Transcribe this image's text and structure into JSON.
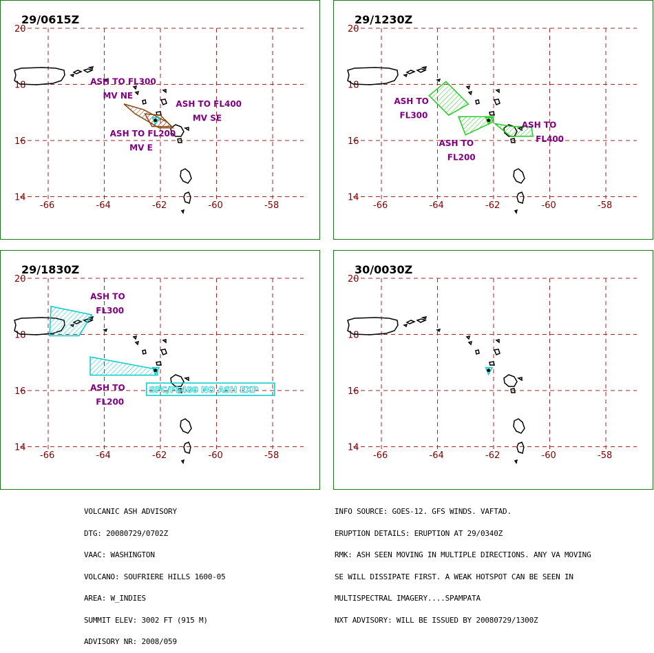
{
  "panels": [
    {
      "time": "29/0615Z",
      "labels": [
        {
          "text": "ASH TO FL300",
          "lon": -64.5,
          "lat": 18.0
        },
        {
          "text": "MV NE",
          "lon": -64.05,
          "lat": 17.5
        },
        {
          "text": "ASH TO FL400",
          "lon": -61.45,
          "lat": 17.2
        },
        {
          "text": "MV SE",
          "lon": -60.85,
          "lat": 16.7
        },
        {
          "text": "ASH TO FL200",
          "lon": -63.8,
          "lat": 16.15
        },
        {
          "text": "MV E",
          "lon": -63.1,
          "lat": 15.65
        }
      ],
      "ash_areas": [
        {
          "color": "#8b4513",
          "points": [
            [
              -63.3,
              17.3
            ],
            [
              -62.6,
              17.1
            ],
            [
              -61.75,
              16.65
            ],
            [
              -61.55,
              16.45
            ],
            [
              -62.05,
              16.45
            ],
            [
              -62.9,
              16.95
            ]
          ]
        },
        {
          "color": "#8b4513",
          "points": [
            [
              -62.55,
              16.95
            ],
            [
              -62.0,
              16.9
            ],
            [
              -61.6,
              16.5
            ],
            [
              -62.3,
              16.5
            ]
          ]
        },
        {
          "color": "#00cccc",
          "points": [
            [
              -62.28,
              16.82
            ],
            [
              -62.05,
              16.82
            ],
            [
              -62.18,
              16.58
            ]
          ]
        }
      ]
    },
    {
      "time": "29/1230Z",
      "labels": [
        {
          "text": "ASH TO",
          "lon": -65.55,
          "lat": 17.3
        },
        {
          "text": "FL300",
          "lon": -65.35,
          "lat": 16.8
        },
        {
          "text": "ASH TO",
          "lon": -63.95,
          "lat": 15.8
        },
        {
          "text": "FL200",
          "lon": -63.65,
          "lat": 15.3
        },
        {
          "text": "ASH TO",
          "lon": -61.0,
          "lat": 16.45
        },
        {
          "text": "FL400",
          "lon": -60.5,
          "lat": 15.95
        }
      ],
      "ash_areas": [
        {
          "color": "#22cc22",
          "points": [
            [
              -64.3,
              17.6
            ],
            [
              -63.7,
              18.1
            ],
            [
              -62.9,
              17.3
            ],
            [
              -63.6,
              16.9
            ]
          ]
        },
        {
          "color": "#22cc22",
          "points": [
            [
              -63.25,
              16.85
            ],
            [
              -62.0,
              16.85
            ],
            [
              -62.05,
              16.65
            ],
            [
              -63.0,
              16.2
            ]
          ]
        },
        {
          "color": "#22cc22",
          "points": [
            [
              -61.95,
              16.6
            ],
            [
              -61.35,
              16.5
            ],
            [
              -60.65,
              16.5
            ],
            [
              -60.6,
              16.15
            ],
            [
              -61.4,
              16.15
            ]
          ]
        },
        {
          "color": "#22cc22",
          "points": [
            [
              -62.28,
              16.82
            ],
            [
              -62.05,
              16.82
            ],
            [
              -62.18,
              16.58
            ]
          ]
        }
      ]
    },
    {
      "time": "29/1830Z",
      "labels": [
        {
          "text": "ASH TO",
          "lon": -64.5,
          "lat": 19.25
        },
        {
          "text": "FL300",
          "lon": -64.3,
          "lat": 18.75
        },
        {
          "text": "ASH TO",
          "lon": -64.5,
          "lat": 16.0
        },
        {
          "text": "FL200",
          "lon": -64.3,
          "lat": 15.5
        }
      ],
      "ash_areas": [
        {
          "color": "#00cccc",
          "points": [
            [
              -65.9,
              19.0
            ],
            [
              -64.45,
              18.7
            ],
            [
              -64.9,
              17.95
            ],
            [
              -65.95,
              17.95
            ]
          ]
        },
        {
          "color": "#00cccc",
          "points": [
            [
              -64.5,
              17.2
            ],
            [
              -62.1,
              16.75
            ],
            [
              -62.1,
              16.55
            ],
            [
              -64.5,
              16.55
            ]
          ]
        },
        {
          "color": "#00cccc",
          "points": [
            [
              -62.28,
              16.82
            ],
            [
              -62.05,
              16.82
            ],
            [
              -62.18,
              16.58
            ]
          ]
        }
      ],
      "boxed_text": {
        "text": "SFC/FL400 NO ASH EXP",
        "lon": -62.2,
        "lat": 15.95,
        "color": "#00cccc"
      }
    },
    {
      "time": "30/0030Z",
      "labels": [],
      "ash_areas": [
        {
          "color": "#00cccc",
          "points": [
            [
              -62.28,
              16.82
            ],
            [
              -62.05,
              16.82
            ],
            [
              -62.18,
              16.58
            ]
          ]
        }
      ]
    }
  ],
  "map": {
    "lat_labels": [
      "20",
      "18",
      "16",
      "14"
    ],
    "lon_labels": [
      "-66",
      "-64",
      "-62",
      "-60",
      "-58"
    ],
    "lat_values": [
      20,
      18,
      16,
      14
    ],
    "lon_values": [
      -66,
      -64,
      -62,
      -60,
      -58
    ],
    "grid_color": "#aa2222",
    "label_color": "#800000",
    "ash_label_color": "#800080",
    "frame_color": "#1a7a1a"
  },
  "advisory_left": [
    "VOLCANIC ASH ADVISORY",
    "DTG: 20080729/0702Z",
    "VAAC: WASHINGTON",
    "VOLCANO: SOUFRIERE HILLS 1600-05",
    "AREA: W_INDIES",
    "SUMMIT ELEV: 3002 FT (915 M)",
    "ADVISORY NR: 2008/059"
  ],
  "advisory_right": [
    "INFO SOURCE: GOES-12. GFS WINDS. VAFTAD.",
    "ERUPTION DETAILS: ERUPTION AT 29/0340Z",
    "RMK: ASH SEEN MOVING IN MULTIPLE DIRECTIONS. ANY VA MOVING",
    "SE WILL DISSIPATE FIRST. A WEAK HOTSPOT CAN BE SEEN IN",
    "MULTISPECTRAL IMAGERY....SPAMPATA",
    "NXT ADVISORY: WILL BE ISSUED BY 20080729/1300Z"
  ]
}
